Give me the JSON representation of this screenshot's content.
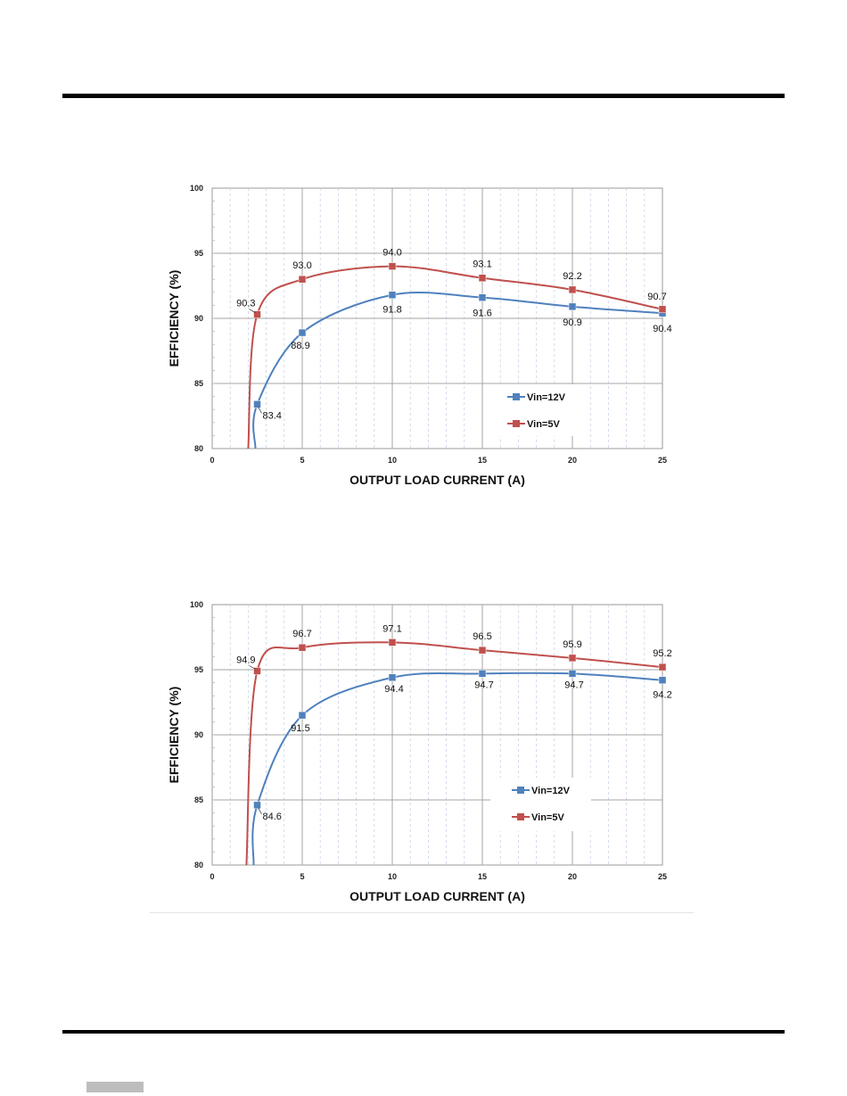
{
  "chart_data": [
    {
      "type": "line",
      "xlabel": "OUTPUT LOAD CURRENT  (A)",
      "ylabel": "EFFICIENCY (%)",
      "xlim": [
        0,
        25
      ],
      "ylim": [
        80,
        100
      ],
      "xticks": [
        "0",
        "5",
        "10",
        "15",
        "20",
        "25"
      ],
      "yticks": [
        "80",
        "85",
        "90",
        "95",
        "100"
      ],
      "grid": true,
      "minor_x_grid": true,
      "legend_position": "lower-right",
      "series": [
        {
          "name": "Vin=12V",
          "color": "#4f81bd",
          "x": [
            2.4,
            2.5,
            5,
            10,
            15,
            20,
            25
          ],
          "values": [
            80.0,
            83.4,
            88.9,
            91.8,
            91.6,
            90.9,
            90.4
          ],
          "labels": [
            null,
            "83.4",
            "88.9",
            "91.8",
            "91.6",
            "90.9",
            "90.4"
          ]
        },
        {
          "name": "Vin=5V",
          "color": "#c0504d",
          "x": [
            2.0,
            2.5,
            5,
            10,
            15,
            20,
            25
          ],
          "values": [
            80.0,
            90.3,
            93.0,
            94.0,
            93.1,
            92.2,
            90.7
          ],
          "labels": [
            null,
            "90.3",
            "93.0",
            "94.0",
            "93.1",
            "92.2",
            "90.7"
          ]
        }
      ]
    },
    {
      "type": "line",
      "xlabel": "OUTPUT LOAD CURRENT  (A)",
      "ylabel": "EFFICIENCY (%)",
      "xlim": [
        0,
        25
      ],
      "ylim": [
        80,
        100
      ],
      "xticks": [
        "0",
        "5",
        "10",
        "15",
        "20",
        "25"
      ],
      "yticks": [
        "80",
        "85",
        "90",
        "95",
        "100"
      ],
      "grid": true,
      "minor_x_grid": true,
      "legend_position": "lower-right",
      "series": [
        {
          "name": "Vin=12V",
          "color": "#4f81bd",
          "x": [
            2.3,
            2.5,
            5,
            10,
            15,
            20,
            25
          ],
          "values": [
            80.0,
            84.6,
            91.5,
            94.4,
            94.7,
            94.7,
            94.2
          ],
          "labels": [
            null,
            "84.6",
            "91.5",
            "94.4",
            "94.7",
            "94.7",
            "94.2"
          ]
        },
        {
          "name": "Vin=5V",
          "color": "#c0504d",
          "x": [
            1.9,
            2.5,
            5,
            10,
            15,
            20,
            25
          ],
          "values": [
            80.0,
            94.9,
            96.7,
            97.1,
            96.5,
            95.9,
            95.2
          ],
          "labels": [
            null,
            "94.9",
            "96.7",
            "97.1",
            "96.5",
            "95.9",
            "95.2"
          ]
        }
      ]
    }
  ]
}
